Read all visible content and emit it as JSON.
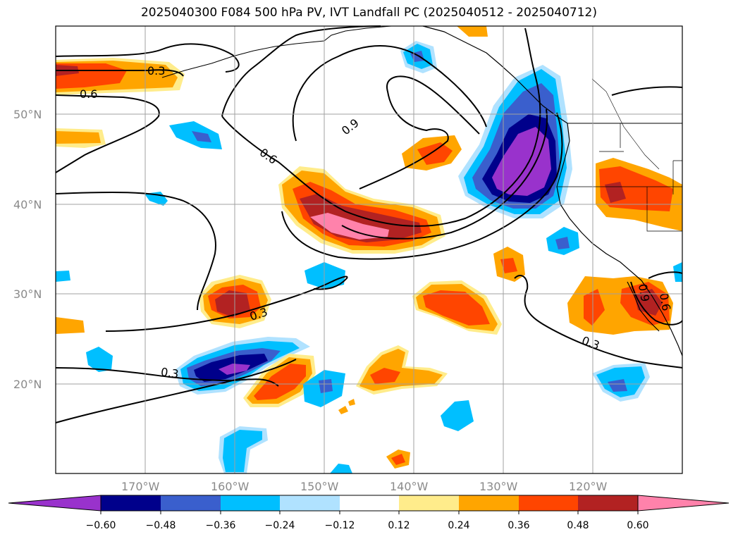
{
  "title": "2025040300 F084 500 hPa PV, IVT Landfall PC (2025040512 - 2025040712)",
  "map": {
    "lon_labels": [
      "170°W",
      "160°W",
      "150°W",
      "140°W",
      "130°W",
      "120°W"
    ],
    "lat_labels": [
      "50°N",
      "40°N",
      "30°N",
      "20°N"
    ],
    "contour_labels": [
      "0.3",
      "0.6",
      "0.9",
      "0.6",
      "0.3",
      "0.3",
      "0.3",
      "0.9",
      "0.6"
    ]
  },
  "colorbar": {
    "ticks": [
      "−0.60",
      "−0.48",
      "−0.36",
      "−0.24",
      "−0.12",
      "0.12",
      "0.24",
      "0.36",
      "0.48",
      "0.60"
    ],
    "colors": [
      "#9932cc",
      "#00008b",
      "#3a5fcd",
      "#00bfff",
      "#b0e2ff",
      "#ffffff",
      "#ffec8b",
      "#ffa500",
      "#ff4500",
      "#b22222",
      "#ff82ab"
    ]
  },
  "colors": {
    "neg_060": "#9932cc",
    "neg_048": "#00008b",
    "neg_036": "#3a5fcd",
    "neg_024": "#00bfff",
    "neg_012": "#b0e2ff",
    "pos_012": "#ffec8b",
    "pos_024": "#ffa500",
    "pos_036": "#ff4500",
    "pos_048": "#b22222",
    "pos_060": "#ff82ab"
  }
}
